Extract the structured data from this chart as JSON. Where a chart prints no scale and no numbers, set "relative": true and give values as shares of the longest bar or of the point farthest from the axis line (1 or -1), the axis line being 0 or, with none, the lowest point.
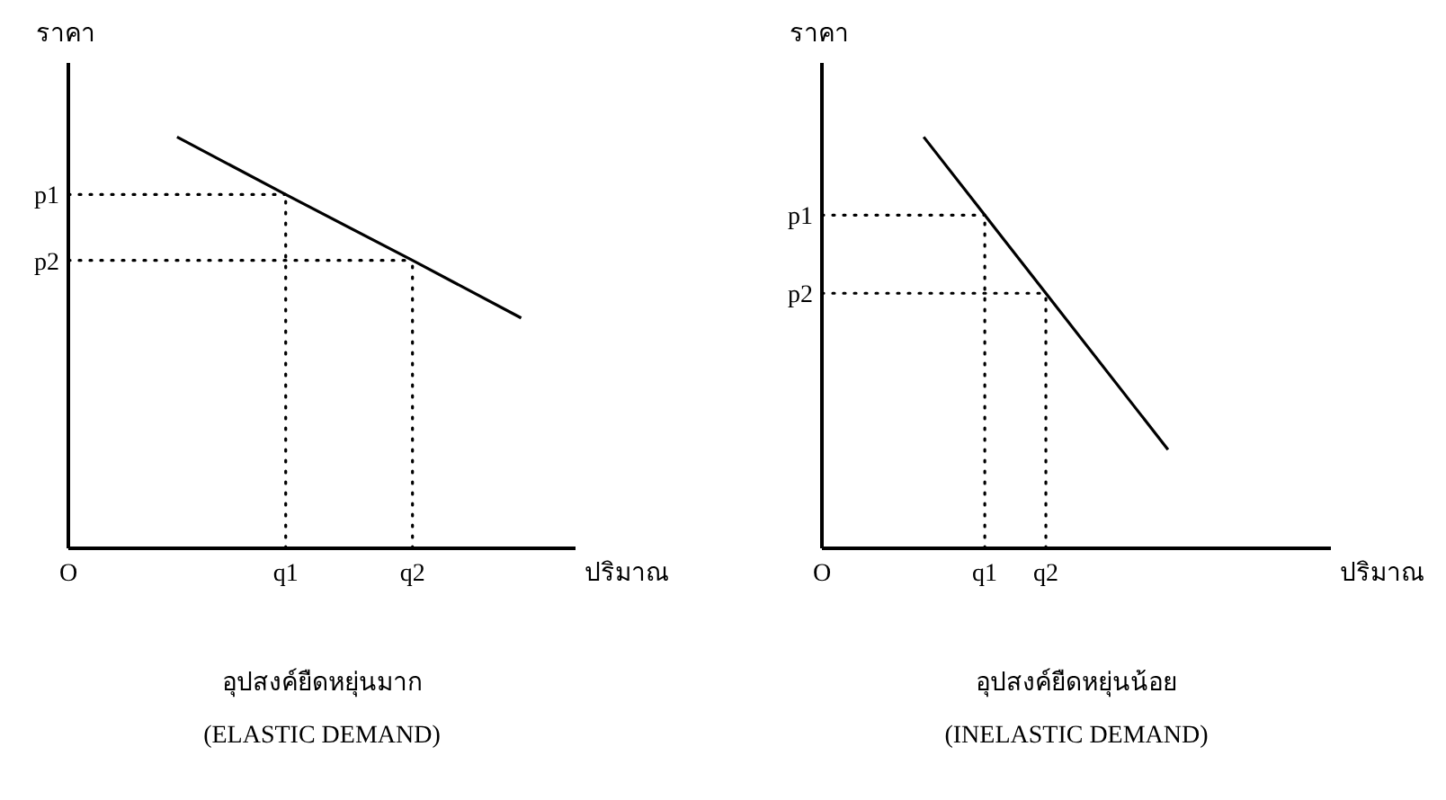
{
  "chart_data": [
    {
      "type": "line",
      "title": "อุปสงค์ยืดหยุ่นมาก",
      "subtitle": "(ELASTIC DEMAND)",
      "xlabel": "ปริมาณ",
      "ylabel": "ราคา",
      "relative": true,
      "marker": "none",
      "line_style": "solid",
      "categories": [
        "O",
        null,
        null,
        null,
        null,
        null,
        null,
        null,
        null,
        null,
        null,
        null,
        "q1",
        null,
        null,
        null,
        null,
        null,
        null,
        "q2",
        null,
        null,
        null,
        null,
        null,
        null,
        null,
        null,
        null
      ],
      "series": [
        {
          "color": "#000000",
          "values": [
            null,
            null,
            null,
            null,
            null,
            null,
            1,
            null,
            null,
            null,
            null,
            null,
            0.86,
            null,
            null,
            null,
            null,
            null,
            null,
            0.7,
            null,
            null,
            null,
            null,
            null,
            0.56,
            null,
            null,
            null
          ]
        }
      ],
      "ref_lines": [
        {
          "axis": "y",
          "value": 0.86,
          "label": "p1",
          "line_style": "dotted"
        },
        {
          "axis": "y",
          "value": 0.7,
          "label": "p2",
          "line_style": "dotted"
        },
        {
          "axis": "x",
          "value": "q1",
          "line_style": "dotted"
        },
        {
          "axis": "x",
          "value": "q2",
          "line_style": "dotted"
        }
      ]
    },
    {
      "type": "line",
      "title": "อุปสงค์ยืดหยุ่นน้อย",
      "subtitle": "(INELASTIC DEMAND)",
      "xlabel": "ปริมาณ",
      "ylabel": "ราคา",
      "relative": true,
      "marker": "none",
      "line_style": "solid",
      "categories": [
        "O",
        null,
        null,
        null,
        null,
        null,
        null,
        null,
        "q1",
        null,
        null,
        "q2",
        null,
        null,
        null,
        null,
        null,
        null,
        null,
        null,
        null,
        null,
        null,
        null,
        null,
        null
      ],
      "series": [
        {
          "color": "#000000",
          "values": [
            null,
            null,
            null,
            null,
            null,
            1,
            null,
            null,
            0.81,
            null,
            null,
            0.62,
            null,
            null,
            null,
            null,
            null,
            0.24,
            null,
            null,
            null,
            null,
            null,
            null,
            null,
            null
          ]
        }
      ],
      "ref_lines": [
        {
          "axis": "y",
          "value": 0.81,
          "label": "p1",
          "line_style": "dotted"
        },
        {
          "axis": "y",
          "value": 0.62,
          "label": "p2",
          "line_style": "dotted"
        },
        {
          "axis": "x",
          "value": "q1",
          "line_style": "dotted"
        },
        {
          "axis": "x",
          "value": "q2",
          "line_style": "dotted"
        }
      ]
    }
  ]
}
